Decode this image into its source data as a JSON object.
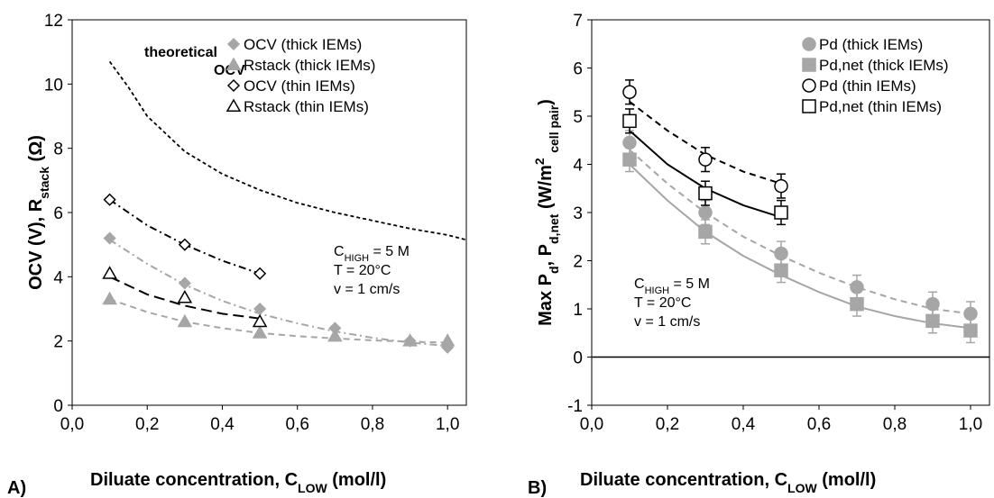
{
  "chart_data": [
    {
      "type": "scatter",
      "panel_label": "A)",
      "xlabel": "Diluate concentration, C",
      "xlabel_sub": "LOW",
      "xlabel_unit": " (mol/l)",
      "ylabel_parts": [
        "OCV (V), R",
        "stack",
        " (Ω)"
      ],
      "xlim": [
        0.0,
        1.05
      ],
      "ylim": [
        0,
        12
      ],
      "xticks": [
        0.0,
        0.2,
        0.4,
        0.6,
        0.8,
        1.0
      ],
      "xtick_labels": [
        "0,0",
        "0,2",
        "0,4",
        "0,6",
        "0,8",
        "1,0"
      ],
      "yticks": [
        0,
        2,
        4,
        6,
        8,
        10,
        12
      ],
      "ytick_labels": [
        "0",
        "2",
        "4",
        "6",
        "8",
        "10",
        "12"
      ],
      "annotation": [
        "theoretical",
        "OCV"
      ],
      "conditions": [
        {
          "pre": "C",
          "sub": "HIGH",
          "post": " = 5 M"
        },
        {
          "pre": "T = 20°C",
          "sub": "",
          "post": ""
        },
        {
          "pre": "v = 1 cm/s",
          "sub": "",
          "post": ""
        }
      ],
      "theoretical_ocv": {
        "x": [
          0.1,
          0.15,
          0.2,
          0.3,
          0.4,
          0.5,
          0.6,
          0.7,
          0.8,
          0.9,
          1.0,
          1.05
        ],
        "y": [
          10.7,
          9.9,
          9.0,
          7.9,
          7.2,
          6.7,
          6.3,
          6.0,
          5.75,
          5.5,
          5.3,
          5.15
        ]
      },
      "series": [
        {
          "name": "OCV (thick IEMs)",
          "marker": "diamond-filled",
          "color": "#a6a6a6",
          "x": [
            0.1,
            0.3,
            0.5,
            0.7,
            0.9,
            1.0
          ],
          "y": [
            5.2,
            3.8,
            3.0,
            2.4,
            2.0,
            1.8
          ],
          "fit_style": "dashdot",
          "fit_x": [
            0.1,
            0.2,
            0.3,
            0.4,
            0.5,
            0.6,
            0.7,
            0.8,
            0.9,
            1.0
          ],
          "fit_y": [
            5.15,
            4.4,
            3.75,
            3.25,
            2.85,
            2.55,
            2.3,
            2.1,
            1.95,
            1.85
          ]
        },
        {
          "name": "Rstack (thick IEMs)",
          "marker": "triangle-filled",
          "color": "#a6a6a6",
          "x": [
            0.1,
            0.3,
            0.5,
            0.7,
            0.9,
            1.0
          ],
          "y": [
            3.3,
            2.6,
            2.25,
            2.15,
            2.0,
            2.0
          ],
          "fit_style": "dash",
          "fit_x": [
            0.1,
            0.2,
            0.3,
            0.4,
            0.5,
            0.6,
            0.7,
            0.8,
            0.9,
            1.0
          ],
          "fit_y": [
            3.3,
            2.9,
            2.6,
            2.4,
            2.25,
            2.15,
            2.08,
            2.02,
            1.98,
            1.95
          ]
        },
        {
          "name": "OCV (thin IEMs)",
          "marker": "diamond-open",
          "color": "#000000",
          "x": [
            0.1,
            0.3,
            0.5
          ],
          "y": [
            6.4,
            5.0,
            4.1
          ],
          "fit_style": "dashdot",
          "fit_x": [
            0.1,
            0.2,
            0.3,
            0.4,
            0.5
          ],
          "fit_y": [
            6.4,
            5.6,
            5.0,
            4.5,
            4.1
          ]
        },
        {
          "name": "Rstack (thin IEMs)",
          "marker": "triangle-open",
          "color": "#000000",
          "x": [
            0.1,
            0.3,
            0.5
          ],
          "y": [
            4.1,
            3.35,
            2.6
          ],
          "fit_style": "longdash",
          "fit_x": [
            0.1,
            0.2,
            0.3,
            0.4,
            0.5
          ],
          "fit_y": [
            4.0,
            3.45,
            3.1,
            2.85,
            2.7
          ]
        }
      ]
    },
    {
      "type": "scatter",
      "panel_label": "B)",
      "xlabel": "Diluate concentration, C",
      "xlabel_sub": "LOW",
      "xlabel_unit": " (mol/l)",
      "ylabel_parts": [
        "Max P",
        "d",
        ", P",
        "d,net",
        " (W/m",
        "2",
        " ",
        "cell pair",
        ")"
      ],
      "xlim": [
        0.0,
        1.05
      ],
      "ylim": [
        -1,
        7
      ],
      "xticks": [
        0.0,
        0.2,
        0.4,
        0.6,
        0.8,
        1.0
      ],
      "xtick_labels": [
        "0,0",
        "0,2",
        "0,4",
        "0,6",
        "0,8",
        "1,0"
      ],
      "yticks": [
        -1,
        0,
        1,
        2,
        3,
        4,
        5,
        6,
        7
      ],
      "ytick_labels": [
        "-1",
        "0",
        "1",
        "2",
        "3",
        "4",
        "5",
        "6",
        "7"
      ],
      "conditions": [
        {
          "pre": "C",
          "sub": "HIGH",
          "post": " = 5 M"
        },
        {
          "pre": "T = 20°C",
          "sub": "",
          "post": ""
        },
        {
          "pre": "v = 1 cm/s",
          "sub": "",
          "post": ""
        }
      ],
      "series": [
        {
          "name": "Pd (thick IEMs)",
          "marker": "circle-filled",
          "color": "#a6a6a6",
          "x": [
            0.1,
            0.3,
            0.5,
            0.7,
            0.9,
            1.0
          ],
          "y": [
            4.45,
            3.0,
            2.15,
            1.45,
            1.1,
            0.9
          ],
          "err": [
            0.25,
            0.25,
            0.25,
            0.25,
            0.25,
            0.25
          ],
          "fit_style": "dash",
          "fit_x": [
            0.1,
            0.2,
            0.3,
            0.4,
            0.5,
            0.6,
            0.7,
            0.8,
            0.9,
            1.0
          ],
          "fit_y": [
            4.3,
            3.6,
            3.0,
            2.5,
            2.1,
            1.75,
            1.45,
            1.2,
            1.0,
            0.9
          ]
        },
        {
          "name": "Pd,net (thick IEMs)",
          "marker": "square-filled",
          "color": "#a6a6a6",
          "x": [
            0.1,
            0.3,
            0.5,
            0.7,
            0.9,
            1.0
          ],
          "y": [
            4.1,
            2.6,
            1.8,
            1.1,
            0.75,
            0.55
          ],
          "err": [
            0.25,
            0.25,
            0.25,
            0.25,
            0.25,
            0.25
          ],
          "fit_style": "solid",
          "fit_x": [
            0.1,
            0.2,
            0.3,
            0.4,
            0.5,
            0.6,
            0.7,
            0.8,
            0.9,
            1.0
          ],
          "fit_y": [
            4.0,
            3.25,
            2.6,
            2.1,
            1.7,
            1.35,
            1.05,
            0.85,
            0.7,
            0.6
          ]
        },
        {
          "name": "Pd (thin IEMs)",
          "marker": "circle-open",
          "color": "#000000",
          "x": [
            0.1,
            0.3,
            0.5
          ],
          "y": [
            5.5,
            4.1,
            3.55
          ],
          "err": [
            0.25,
            0.25,
            0.25
          ],
          "fit_style": "dash",
          "fit_x": [
            0.1,
            0.2,
            0.3,
            0.4,
            0.5
          ],
          "fit_y": [
            5.3,
            4.7,
            4.2,
            3.85,
            3.6
          ]
        },
        {
          "name": "Pd,net (thin IEMs)",
          "marker": "square-open",
          "color": "#000000",
          "x": [
            0.1,
            0.3,
            0.5
          ],
          "y": [
            4.9,
            3.4,
            3.0
          ],
          "err": [
            0.25,
            0.25,
            0.25
          ],
          "fit_style": "solid",
          "fit_x": [
            0.1,
            0.2,
            0.3,
            0.4,
            0.5
          ],
          "fit_y": [
            4.7,
            4.0,
            3.5,
            3.15,
            2.9
          ]
        }
      ]
    }
  ]
}
